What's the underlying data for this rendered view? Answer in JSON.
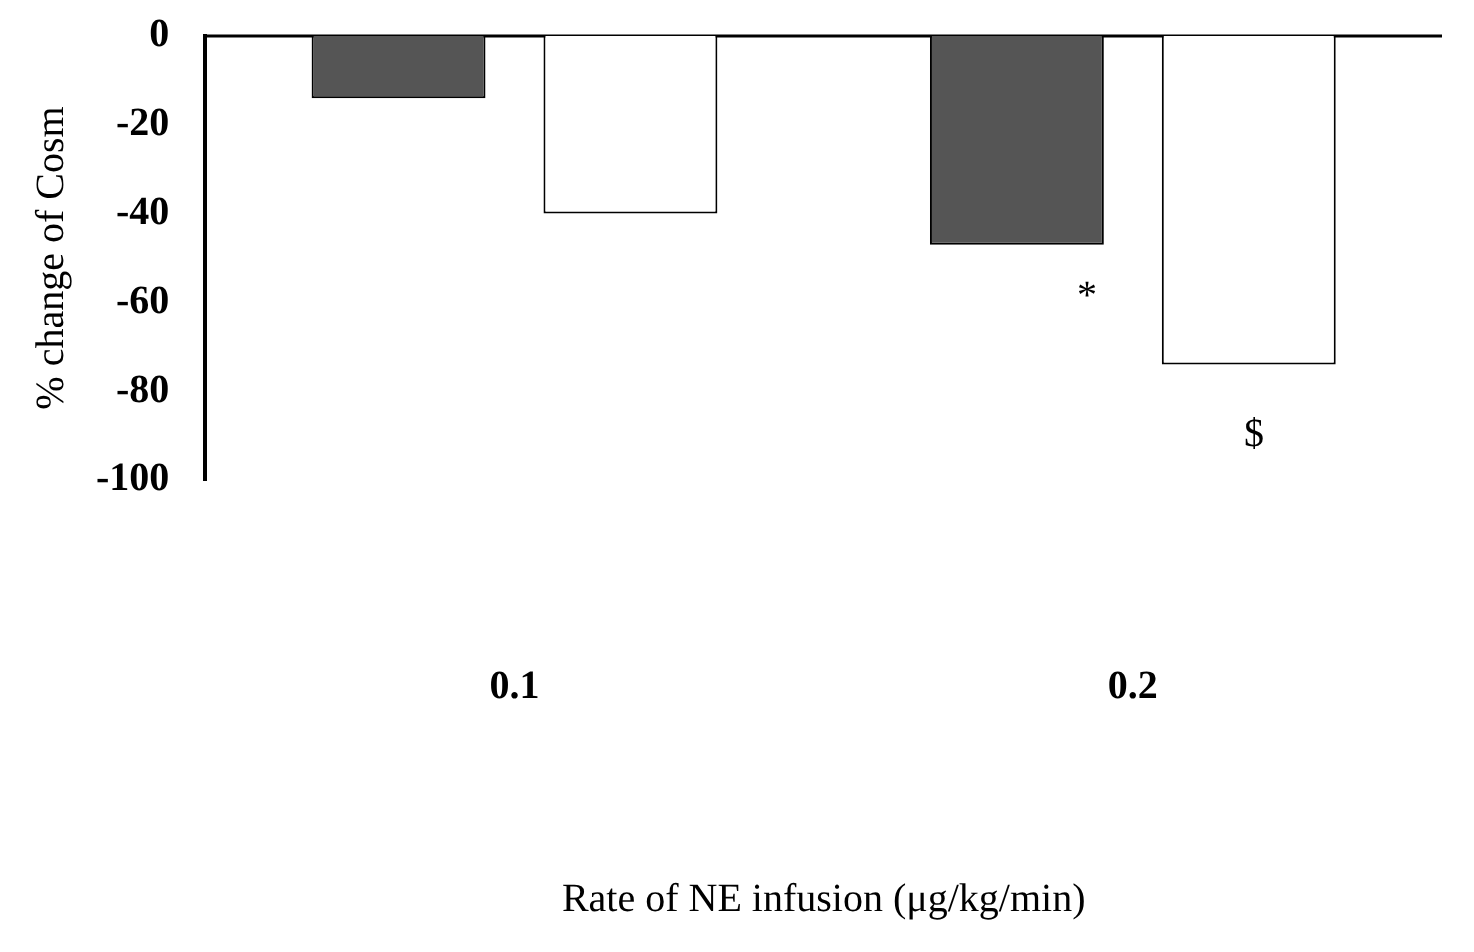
{
  "chart_data": {
    "type": "bar",
    "xlabel": "Rate of NE infusion (μg/kg/min)",
    "ylabel": "% change of Cosm",
    "categories": [
      "0.1",
      "0.2"
    ],
    "series": [
      {
        "color": "#555555",
        "values": [
          -14,
          -47
        ]
      },
      {
        "color": "#ffffff",
        "values": [
          -40,
          -74
        ]
      }
    ],
    "ylim": [
      -100,
      0
    ],
    "yticks": [
      -100,
      -80,
      -60,
      -40,
      -20,
      0
    ],
    "grid": false,
    "legend": false,
    "annotations": [
      "*",
      "$"
    ]
  }
}
